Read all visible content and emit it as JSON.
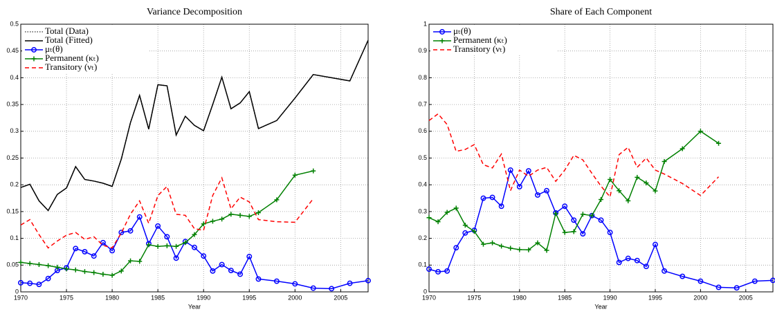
{
  "chart_data": [
    {
      "type": "line",
      "title": "Variance Decomposition",
      "xlabel": "Year",
      "x": [
        1970,
        1971,
        1972,
        1973,
        1974,
        1975,
        1976,
        1977,
        1978,
        1979,
        1980,
        1981,
        1982,
        1983,
        1984,
        1985,
        1986,
        1987,
        1988,
        1989,
        1990,
        1991,
        1992,
        1993,
        1994,
        1995,
        1996,
        1998,
        2000,
        2002,
        2004,
        2006,
        2008
      ],
      "xlim": [
        1970,
        2008
      ],
      "xticks": [
        1970,
        1975,
        1980,
        1985,
        1990,
        1995,
        2000,
        2005
      ],
      "ylim": [
        0,
        0.5
      ],
      "yticks": [
        0,
        0.05,
        0.1,
        0.15,
        0.2,
        0.25,
        0.3,
        0.35,
        0.4,
        0.45,
        0.5
      ],
      "grid": true,
      "legend": "upper left",
      "series": [
        {
          "name": "Total (Data)",
          "color": "#555555",
          "dash": "dotted",
          "marker": "none",
          "values": [
            0.195,
            0.201,
            0.17,
            0.152,
            0.182,
            0.194,
            0.234,
            0.21,
            0.207,
            0.203,
            0.197,
            0.248,
            0.316,
            0.367,
            0.304,
            0.387,
            0.385,
            0.293,
            0.328,
            0.311,
            0.301,
            0.35,
            0.401,
            0.342,
            0.353,
            0.374,
            0.305,
            0.32,
            0.362,
            0.406,
            0.4,
            0.394,
            0.47
          ]
        },
        {
          "name": "Total (Fitted)",
          "color": "#000000",
          "dash": "solid",
          "marker": "none",
          "values": [
            0.195,
            0.201,
            0.17,
            0.152,
            0.182,
            0.194,
            0.234,
            0.21,
            0.207,
            0.203,
            0.197,
            0.248,
            0.316,
            0.367,
            0.304,
            0.387,
            0.385,
            0.293,
            0.328,
            0.311,
            0.301,
            0.35,
            0.401,
            0.342,
            0.353,
            0.374,
            0.305,
            0.32,
            0.362,
            0.406,
            0.4,
            0.394,
            0.47
          ]
        },
        {
          "name": "μₜ(θ)",
          "color": "#0000ff",
          "dash": "solid",
          "marker": "circle",
          "values": [
            0.017,
            0.016,
            0.014,
            0.025,
            0.04,
            0.045,
            0.081,
            0.075,
            0.067,
            0.092,
            0.077,
            0.111,
            0.114,
            0.14,
            0.09,
            0.123,
            0.103,
            0.063,
            0.094,
            0.083,
            0.067,
            0.039,
            0.051,
            0.04,
            0.033,
            0.066,
            0.024,
            0.02,
            0.015,
            0.007,
            0.006,
            0.016,
            0.021
          ]
        },
        {
          "name": "Permanent (κₜ)",
          "color": "#008000",
          "dash": "solid",
          "marker": "plus",
          "values": [
            0.055,
            0.053,
            0.051,
            0.049,
            0.046,
            0.043,
            0.041,
            0.038,
            0.036,
            0.033,
            0.031,
            0.039,
            0.058,
            0.057,
            0.088,
            0.085,
            0.086,
            0.085,
            0.092,
            0.107,
            0.127,
            0.132,
            0.136,
            0.145,
            0.143,
            0.141,
            0.148,
            0.172,
            0.218,
            0.226,
            null,
            null,
            null
          ]
        },
        {
          "name": "Transitory (νₜ)",
          "color": "#ff0000",
          "dash": "dashed",
          "marker": "none",
          "values": [
            0.125,
            0.135,
            0.107,
            0.082,
            0.095,
            0.106,
            0.111,
            0.098,
            0.103,
            0.087,
            0.082,
            0.11,
            0.145,
            0.17,
            0.128,
            0.18,
            0.197,
            0.145,
            0.143,
            0.118,
            0.115,
            0.18,
            0.213,
            0.155,
            0.177,
            0.168,
            0.135,
            0.131,
            0.13,
            0.174,
            null,
            null,
            null
          ]
        }
      ]
    },
    {
      "type": "line",
      "title": "Share of Each Component",
      "xlabel": "Year",
      "x": [
        1970,
        1971,
        1972,
        1973,
        1974,
        1975,
        1976,
        1977,
        1978,
        1979,
        1980,
        1981,
        1982,
        1983,
        1984,
        1985,
        1986,
        1987,
        1988,
        1989,
        1990,
        1991,
        1992,
        1993,
        1994,
        1995,
        1996,
        1998,
        2000,
        2002,
        2004,
        2006,
        2008
      ],
      "xlim": [
        1970,
        2008
      ],
      "xticks": [
        1970,
        1975,
        1980,
        1985,
        1990,
        1995,
        2000,
        2005
      ],
      "ylim": [
        0,
        1
      ],
      "yticks": [
        0,
        0.1,
        0.2,
        0.3,
        0.4,
        0.5,
        0.6,
        0.7,
        0.8,
        0.9,
        1
      ],
      "grid": true,
      "legend": "upper left",
      "series": [
        {
          "name": "μₜ(θ)",
          "color": "#0000ff",
          "dash": "solid",
          "marker": "circle",
          "values": [
            0.085,
            0.075,
            0.078,
            0.165,
            0.22,
            0.23,
            0.35,
            0.353,
            0.32,
            0.455,
            0.393,
            0.452,
            0.362,
            0.378,
            0.295,
            0.32,
            0.268,
            0.217,
            0.285,
            0.268,
            0.222,
            0.11,
            0.125,
            0.117,
            0.095,
            0.177,
            0.078,
            0.058,
            0.04,
            0.017,
            0.015,
            0.04,
            0.043
          ]
        },
        {
          "name": "Permanent (κₜ)",
          "color": "#008000",
          "dash": "solid",
          "marker": "plus",
          "values": [
            0.277,
            0.262,
            0.297,
            0.313,
            0.249,
            0.226,
            0.178,
            0.183,
            0.171,
            0.163,
            0.158,
            0.157,
            0.183,
            0.155,
            0.293,
            0.222,
            0.225,
            0.29,
            0.285,
            0.345,
            0.42,
            0.378,
            0.34,
            0.428,
            0.407,
            0.377,
            0.487,
            0.535,
            0.6,
            0.555,
            null,
            null,
            null
          ]
        },
        {
          "name": "Transitory (νₜ)",
          "color": "#ff0000",
          "dash": "dashed",
          "marker": "none",
          "values": [
            0.64,
            0.665,
            0.625,
            0.525,
            0.532,
            0.55,
            0.475,
            0.463,
            0.515,
            0.378,
            0.455,
            0.432,
            0.455,
            0.465,
            0.413,
            0.455,
            0.51,
            0.493,
            0.443,
            0.395,
            0.355,
            0.513,
            0.54,
            0.465,
            0.5,
            0.455,
            0.44,
            0.405,
            0.36,
            0.43,
            null,
            null,
            null
          ]
        }
      ]
    }
  ]
}
